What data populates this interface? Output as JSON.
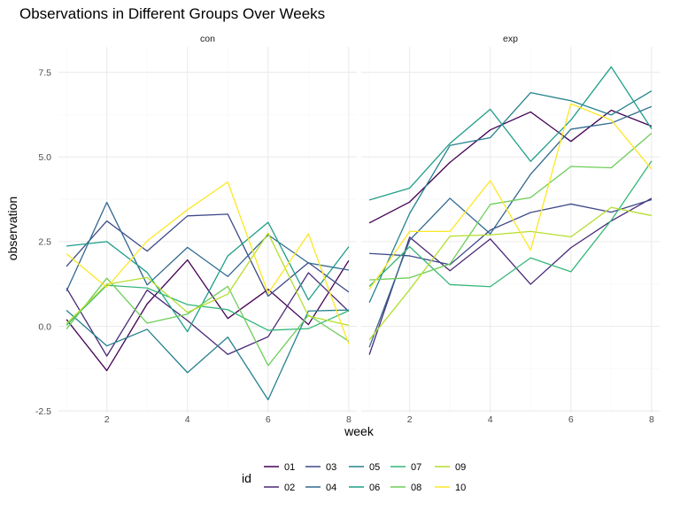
{
  "chart_data": {
    "type": "line",
    "title": "Observations in Different Groups Over Weeks",
    "xlabel": "week",
    "ylabel": "observation",
    "xlim": [
      0.8,
      8.2
    ],
    "ylim": [
      -2.55,
      8.25
    ],
    "x_ticks": [
      2,
      4,
      6,
      8
    ],
    "y_ticks": [
      -2.5,
      0.0,
      2.5,
      5.0,
      7.5
    ],
    "y_tick_labels": [
      "-2.5",
      "0.0",
      "2.5",
      "5.0",
      "7.5"
    ],
    "grid": true,
    "legend_position": "bottom",
    "legend_title": "id",
    "x": [
      1,
      2,
      3,
      4,
      5,
      6,
      7,
      8
    ],
    "panels": [
      {
        "name": "con",
        "series": [
          {
            "name": "01",
            "color": "#440154",
            "values": [
              0.2,
              -1.31,
              0.66,
              1.96,
              0.23,
              1.09,
              0.05,
              1.94
            ]
          },
          {
            "name": "02",
            "color": "#482878",
            "values": [
              1.13,
              -0.88,
              1.07,
              0.17,
              -0.83,
              -0.31,
              1.58,
              0.44
            ]
          },
          {
            "name": "03",
            "color": "#3E4A89",
            "values": [
              1.77,
              3.11,
              2.22,
              3.26,
              3.31,
              0.89,
              1.88,
              1.01
            ]
          },
          {
            "name": "04",
            "color": "#31688E",
            "values": [
              1.04,
              3.66,
              1.22,
              2.33,
              1.47,
              2.7,
              1.87,
              1.66
            ]
          },
          {
            "name": "05",
            "color": "#26828E",
            "values": [
              0.47,
              -0.58,
              -0.09,
              -1.37,
              -0.32,
              -2.17,
              0.45,
              0.48
            ]
          },
          {
            "name": "06",
            "color": "#1F9E89",
            "values": [
              2.37,
              2.5,
              1.59,
              -0.16,
              2.08,
              3.07,
              0.78,
              2.35
            ]
          },
          {
            "name": "07",
            "color": "#35B779",
            "values": [
              0.03,
              1.21,
              1.13,
              0.64,
              0.49,
              -0.12,
              -0.07,
              0.46
            ]
          },
          {
            "name": "08",
            "color": "#6DCD59",
            "values": [
              -0.08,
              1.42,
              0.09,
              0.36,
              1.18,
              -1.16,
              0.33,
              -0.44
            ]
          },
          {
            "name": "09",
            "color": "#B4DE2C",
            "values": [
              0.08,
              1.24,
              1.44,
              0.41,
              0.95,
              2.75,
              0.3,
              0.03
            ]
          },
          {
            "name": "10",
            "color": "#FDE725",
            "values": [
              2.14,
              1.15,
              2.52,
              3.44,
              4.26,
              0.97,
              2.73,
              -0.53
            ]
          }
        ]
      },
      {
        "name": "exp",
        "series": [
          {
            "name": "01",
            "color": "#440154",
            "values": [
              3.05,
              3.67,
              4.84,
              5.8,
              6.33,
              5.46,
              6.38,
              5.91
            ]
          },
          {
            "name": "02",
            "color": "#482878",
            "values": [
              -0.84,
              2.63,
              1.64,
              2.58,
              1.24,
              2.32,
              3.11,
              3.78
            ]
          },
          {
            "name": "03",
            "color": "#3E4A89",
            "values": [
              2.15,
              2.08,
              1.82,
              2.84,
              3.36,
              3.61,
              3.37,
              3.74
            ]
          },
          {
            "name": "04",
            "color": "#31688E",
            "values": [
              -0.62,
              2.54,
              3.78,
              2.73,
              4.49,
              5.82,
              6.0,
              6.49
            ]
          },
          {
            "name": "05",
            "color": "#26828E",
            "values": [
              0.7,
              3.33,
              5.34,
              5.57,
              6.9,
              6.66,
              6.24,
              6.95
            ]
          },
          {
            "name": "06",
            "color": "#1F9E89",
            "values": [
              3.73,
              4.08,
              5.4,
              6.41,
              4.87,
              6.09,
              7.66,
              5.83
            ]
          },
          {
            "name": "07",
            "color": "#35B779",
            "values": [
              1.18,
              2.35,
              1.23,
              1.17,
              2.02,
              1.61,
              3.13,
              4.88
            ]
          },
          {
            "name": "08",
            "color": "#6DCD59",
            "values": [
              1.37,
              1.43,
              1.84,
              3.6,
              3.8,
              4.72,
              4.68,
              5.7
            ]
          },
          {
            "name": "09",
            "color": "#B4DE2C",
            "values": [
              -0.4,
              1.08,
              2.66,
              2.7,
              2.8,
              2.64,
              3.51,
              3.27
            ]
          },
          {
            "name": "10",
            "color": "#FDE725",
            "values": [
              1.09,
              2.8,
              2.8,
              4.3,
              2.25,
              6.57,
              6.09,
              4.64
            ]
          }
        ]
      }
    ]
  }
}
